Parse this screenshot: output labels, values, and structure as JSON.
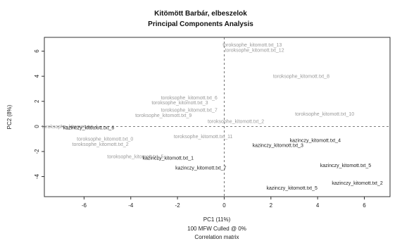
{
  "chart_data": {
    "type": "scatter",
    "title": "Kitömött Barbár, elbeszelok",
    "subtitle": "Principal Components Analysis",
    "xlabel": "PC1 (11%)",
    "ylabel": "PC2 (8%)",
    "footer_lines": [
      "100 MFW Culled @ 0%",
      "Correlation matrix"
    ],
    "xlim": [
      -7.7,
      7.1
    ],
    "ylim": [
      -5.6,
      7.1
    ],
    "xticks": [
      "-6",
      "-4",
      "-2",
      "0",
      "2",
      "4",
      "6"
    ],
    "yticks": [
      "6",
      "4",
      "2",
      "0",
      "-2",
      "-4"
    ],
    "reference_lines": {
      "x": 0,
      "y": 0
    },
    "points": [
      {
        "label": "toroksophe_kitomott.txt_13",
        "x": 1.2,
        "y": 6.5,
        "color": "#9a9a9a"
      },
      {
        "label": "toroksophe_kitomott.txt_12",
        "x": 1.3,
        "y": 6.1,
        "color": "#9a9a9a"
      },
      {
        "label": "toroksophe_kitomott.txt_8",
        "x": 3.3,
        "y": 4.0,
        "color": "#9a9a9a"
      },
      {
        "label": "toroksophe_kitomott.txt_6",
        "x": -1.5,
        "y": 2.3,
        "color": "#9a9a9a"
      },
      {
        "label": "toroksophe_kitomott.txt_3",
        "x": -1.9,
        "y": 1.9,
        "color": "#9a9a9a"
      },
      {
        "label": "toroksophe_kitomott.txt_7",
        "x": -1.5,
        "y": 1.3,
        "color": "#9a9a9a"
      },
      {
        "label": "toroksophe_kitomott.txt_10",
        "x": 4.3,
        "y": 1.0,
        "color": "#9a9a9a"
      },
      {
        "label": "toroksophe_kitomott.txt_9",
        "x": -2.6,
        "y": 0.9,
        "color": "#9a9a9a"
      },
      {
        "label": "toroksophe_kitomott.txt_2",
        "x": 0.5,
        "y": 0.4,
        "color": "#9a9a9a"
      },
      {
        "label": "toroksophe_kitomott.txt_1",
        "x": -6.6,
        "y": 0.0,
        "color": "#9a9a9a"
      },
      {
        "label": "kazinczy_kitomott.txt_6",
        "x": -5.8,
        "y": -0.1,
        "color": "#222222"
      },
      {
        "label": "toroksophe_kitomott.txt_11",
        "x": -0.9,
        "y": -0.8,
        "color": "#9a9a9a"
      },
      {
        "label": "toroksophe_kitomott.txt_0",
        "x": -5.1,
        "y": -1.0,
        "color": "#9a9a9a"
      },
      {
        "label": "toroksophe_kitomott.txt_2",
        "x": -5.3,
        "y": -1.4,
        "color": "#9a9a9a"
      },
      {
        "label": "kazinczy_kitomott.txt_4",
        "x": 3.9,
        "y": -1.1,
        "color": "#222222"
      },
      {
        "label": "kazinczy_kitomott.txt_3",
        "x": 2.3,
        "y": -1.5,
        "color": "#222222"
      },
      {
        "label": "toroksophe_kitomott.txt_5",
        "x": -3.8,
        "y": -2.4,
        "color": "#9a9a9a"
      },
      {
        "label": "kazinczy_kitomott.txt_1",
        "x": -2.4,
        "y": -2.5,
        "color": "#222222"
      },
      {
        "label": "kazinczy_kitomott.txt_7",
        "x": -1.0,
        "y": -3.3,
        "color": "#222222"
      },
      {
        "label": "kazinczy_kitomott.txt_5",
        "x": 5.2,
        "y": -3.1,
        "color": "#222222"
      },
      {
        "label": "kazinczy_kitomott.txt_2",
        "x": 5.7,
        "y": -4.5,
        "color": "#222222"
      },
      {
        "label": "kazinczy_kitomott.txt_5",
        "x": 2.9,
        "y": -4.9,
        "color": "#222222"
      }
    ]
  }
}
